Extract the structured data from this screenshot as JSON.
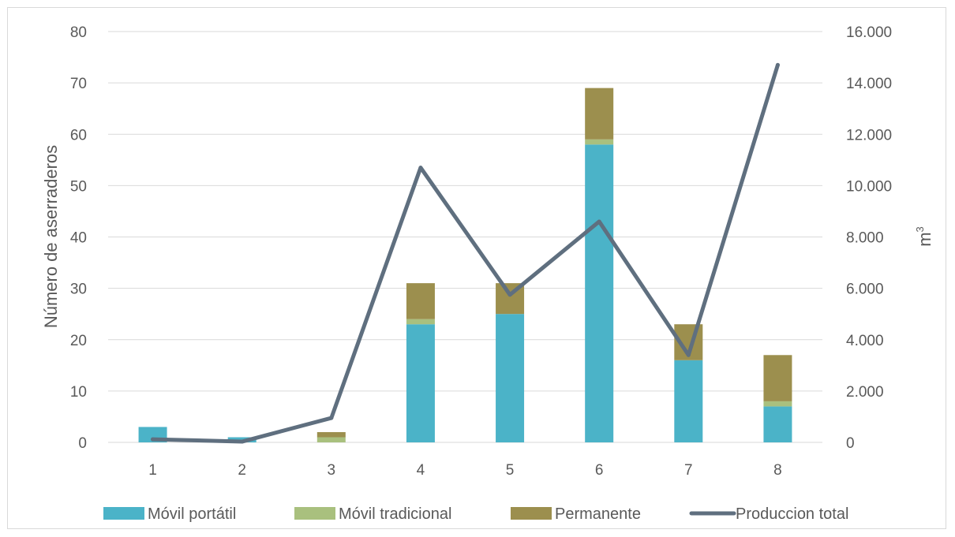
{
  "chart_data": {
    "type": "bar",
    "stacked": true,
    "title": "",
    "categories": [
      "1",
      "2",
      "3",
      "4",
      "5",
      "6",
      "7",
      "8"
    ],
    "series": [
      {
        "name": "Móvil portátil",
        "type": "bar",
        "axis": "left",
        "color": "#4BB3C8",
        "values": [
          3,
          1,
          0,
          23,
          25,
          58,
          16,
          7
        ]
      },
      {
        "name": "Móvil tradicional",
        "type": "bar",
        "axis": "left",
        "color": "#A9C07E",
        "values": [
          0,
          0,
          1,
          1,
          0,
          1,
          0,
          1
        ]
      },
      {
        "name": "Permanente",
        "type": "bar",
        "axis": "left",
        "color": "#9C8F4E",
        "values": [
          0,
          0,
          1,
          7,
          6,
          10,
          7,
          9
        ]
      },
      {
        "name": "Produccion total",
        "type": "line",
        "axis": "right",
        "color": "#5F6F7F",
        "values": [
          120,
          30,
          950,
          10700,
          5750,
          8600,
          3400,
          14700
        ]
      }
    ],
    "y_left": {
      "label": "Número de aserraderos",
      "ylim": [
        0,
        80
      ],
      "ticks": [
        "0",
        "10",
        "20",
        "30",
        "40",
        "50",
        "60",
        "70",
        "80"
      ]
    },
    "y_right": {
      "label": "m",
      "label_sup": "3",
      "ylim": [
        0,
        16000
      ],
      "ticks": [
        "0",
        "2.000",
        "4.000",
        "6.000",
        "8.000",
        "10.000",
        "12.000",
        "14.000",
        "16.000"
      ]
    },
    "grid": true,
    "legend": "bottom"
  }
}
